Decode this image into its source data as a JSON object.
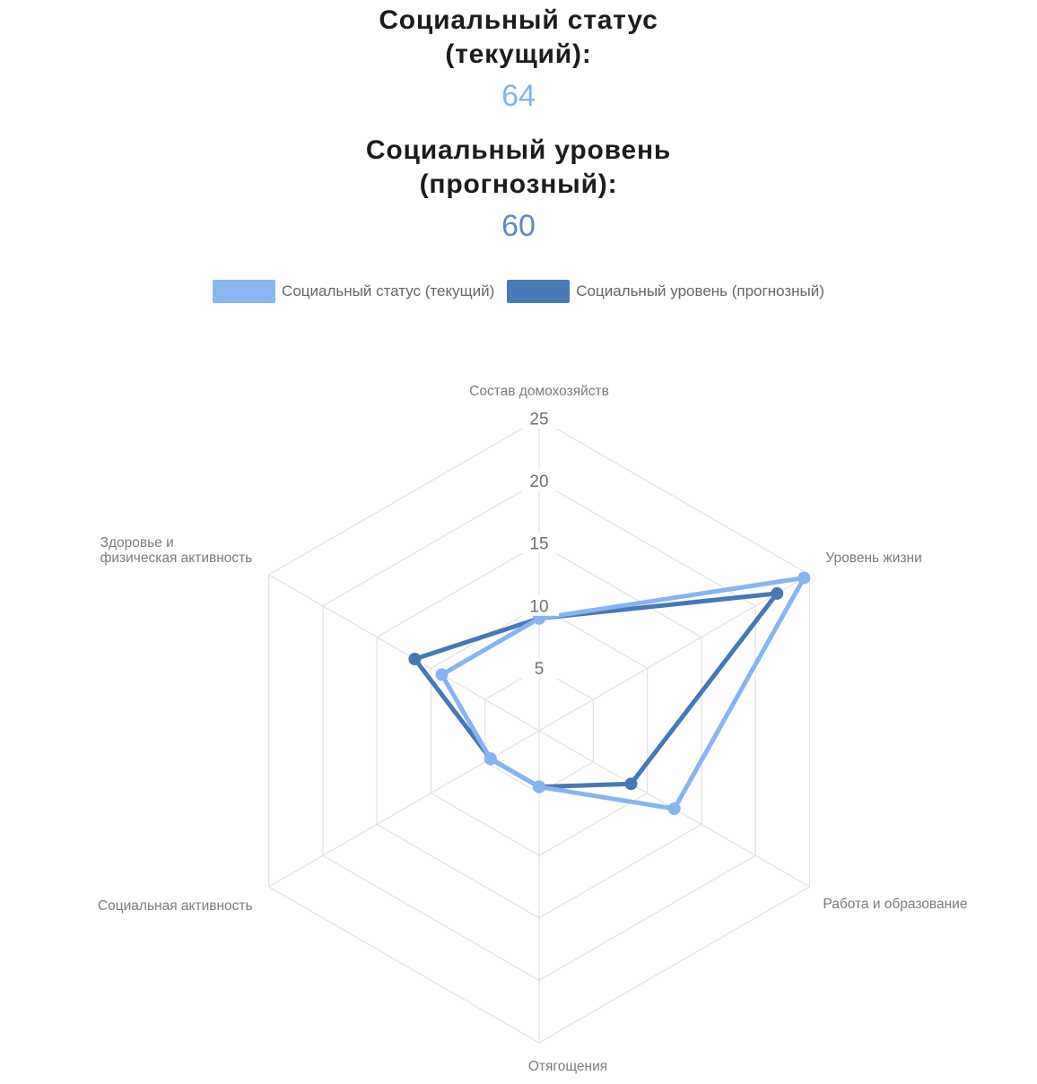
{
  "header": {
    "current": {
      "title": "Социальный статус\n(текущий):",
      "value": "64",
      "color": "#85B2EF"
    },
    "forecast": {
      "title": "Социальный уровень\n(прогнозный):",
      "value": "60",
      "color": "#5C8AC5"
    }
  },
  "legend": [
    {
      "key": "current",
      "label": "Социальный статус (текущий)",
      "color": "#89B6F0"
    },
    {
      "key": "forecast",
      "label": "Социальный уровень (прогнозный)",
      "color": "#4A7AB8"
    }
  ],
  "chart_data": {
    "type": "radar",
    "axes": [
      "Состав домохозяйств",
      "Уровень жизни",
      "Работа и образование",
      "Отягощения",
      "Социальная активность",
      "Здоровье и\nфизическая активность"
    ],
    "ticks": [
      5,
      10,
      15,
      20,
      25
    ],
    "max": 25,
    "grid": true,
    "grid_color": "#E2E2E2",
    "label_color": "#7B7B7B",
    "series": [
      {
        "key": "forecast",
        "name": "Социальный уровень (прогнозный)",
        "color": "#4678B5",
        "values": [
          9,
          22,
          8.5,
          4.5,
          4.5,
          11.5
        ],
        "total": 60
      },
      {
        "key": "current",
        "name": "Социальный статус (текущий)",
        "color": "#87B4F0",
        "values": [
          9,
          24.5,
          12.5,
          4.5,
          4.5,
          9
        ],
        "total": 64
      }
    ],
    "legend_position": "top"
  }
}
